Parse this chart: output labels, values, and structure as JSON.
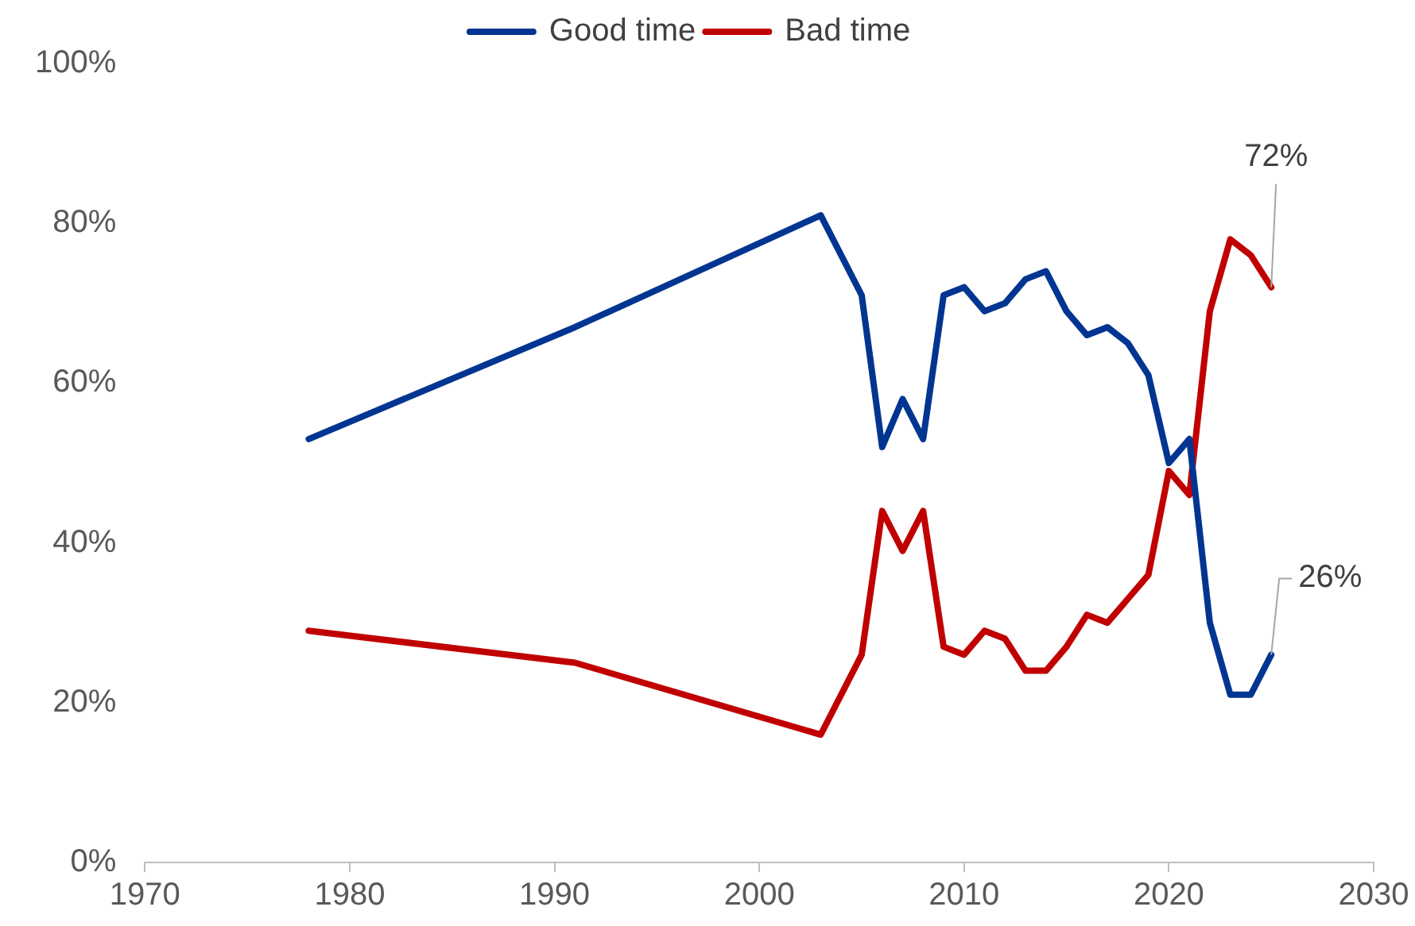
{
  "chart_data": {
    "type": "line",
    "x": [
      1978,
      1991,
      2003,
      2005,
      2006,
      2007,
      2008,
      2009,
      2010,
      2011,
      2012,
      2013,
      2014,
      2015,
      2016,
      2017,
      2018,
      2019,
      2020,
      2021,
      2022,
      2023,
      2024,
      2025
    ],
    "series": [
      {
        "name": "Good time",
        "color": "#003591",
        "values": [
          53,
          67,
          81,
          71,
          52,
          58,
          53,
          71,
          72,
          69,
          70,
          73,
          74,
          69,
          66,
          67,
          65,
          61,
          50,
          53,
          30,
          21,
          21,
          26
        ]
      },
      {
        "name": "Bad time",
        "color": "#c00000",
        "values": [
          29,
          25,
          16,
          26,
          44,
          39,
          44,
          27,
          26,
          29,
          28,
          24,
          24,
          27,
          31,
          30,
          33,
          36,
          49,
          46,
          69,
          78,
          76,
          72
        ]
      }
    ],
    "xlim": [
      1970,
      2030
    ],
    "xticks": [
      1970,
      1980,
      1990,
      2000,
      2010,
      2020,
      2030
    ],
    "ylim": [
      0,
      100
    ],
    "yticks": [
      {
        "value": 0,
        "label": "0%"
      },
      {
        "value": 20,
        "label": "20%"
      },
      {
        "value": 40,
        "label": "40%"
      },
      {
        "value": 60,
        "label": "60%"
      },
      {
        "value": 80,
        "label": "80%"
      },
      {
        "value": 100,
        "label": "100%"
      }
    ],
    "annotations": [
      {
        "text": "72%",
        "x": 2025,
        "y": 72
      },
      {
        "text": "26%",
        "x": 2025,
        "y": 26
      }
    ],
    "legend": "top",
    "grid": false,
    "marker": "none",
    "line_style": "solid"
  }
}
